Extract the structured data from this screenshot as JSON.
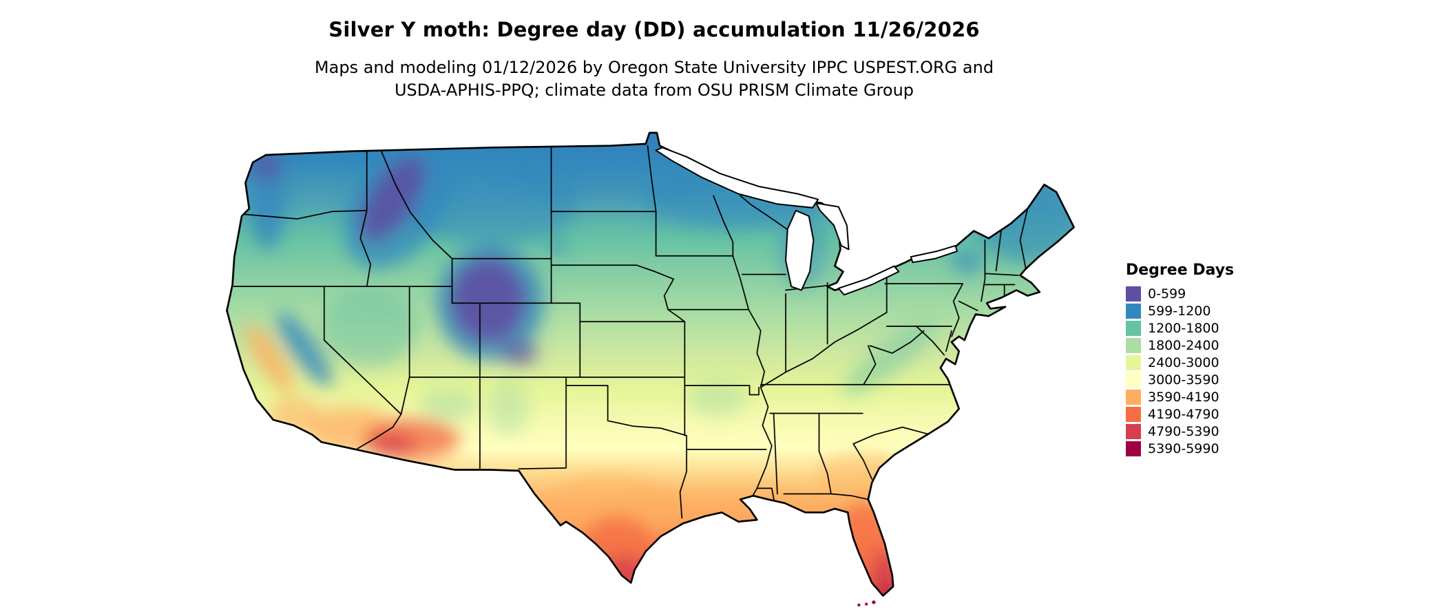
{
  "header": {
    "title": "Silver Y moth: Degree day (DD) accumulation 11/26/2026",
    "subtitle_line1": "Maps and modeling 01/12/2026 by Oregon State University IPPC USPEST.ORG and",
    "subtitle_line2": "USDA-APHIS-PPQ; climate data from OSU PRISM Climate Group"
  },
  "map": {
    "area": "Contiguous United States",
    "kind": "degree-day accumulation choropleth"
  },
  "legend": {
    "title": "Degree Days",
    "classes": [
      {
        "label": "0-599",
        "color": "#5e4fa2"
      },
      {
        "label": "599-1200",
        "color": "#3288bd"
      },
      {
        "label": "1200-1800",
        "color": "#66c2a5"
      },
      {
        "label": "1800-2400",
        "color": "#abdda4"
      },
      {
        "label": "2400-3000",
        "color": "#e6f598"
      },
      {
        "label": "3000-3590",
        "color": "#ffffbf"
      },
      {
        "label": "3590-4190",
        "color": "#fdae61"
      },
      {
        "label": "4190-4790",
        "color": "#f46d43"
      },
      {
        "label": "4790-5390",
        "color": "#d53e4f"
      },
      {
        "label": "5390-5990",
        "color": "#9e0142"
      }
    ]
  }
}
